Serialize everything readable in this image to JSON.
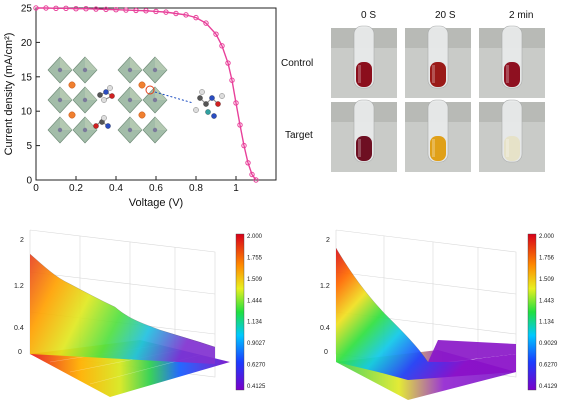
{
  "chart_data": {
    "type": "line",
    "xlabel": "Voltage (V)",
    "ylabel": "Current density (mA/cm²)",
    "xlim": [
      0,
      1.2
    ],
    "ylim": [
      0,
      25
    ],
    "xticks": [
      "0",
      "0.2",
      "0.4",
      "0.6",
      "0.8",
      "1"
    ],
    "yticks": [
      "0",
      "5",
      "10",
      "15",
      "20",
      "25"
    ],
    "series": [
      {
        "color": "#e8409a",
        "x": [
          0,
          0.05,
          0.1,
          0.15,
          0.2,
          0.25,
          0.3,
          0.35,
          0.4,
          0.45,
          0.5,
          0.55,
          0.6,
          0.65,
          0.7,
          0.75,
          0.8,
          0.85,
          0.9,
          0.93,
          0.96,
          0.98,
          1.0,
          1.02,
          1.04,
          1.06,
          1.08,
          1.1
        ],
        "y": [
          25.0,
          25.0,
          24.95,
          24.95,
          24.9,
          24.9,
          24.85,
          24.8,
          24.75,
          24.7,
          24.65,
          24.6,
          24.5,
          24.4,
          24.2,
          24.0,
          23.6,
          22.8,
          21.2,
          19.5,
          17.0,
          14.5,
          11.2,
          8.0,
          5.0,
          2.5,
          0.8,
          0
        ]
      }
    ]
  },
  "photos": {
    "columns": [
      "0 S",
      "20 S",
      "2 min"
    ],
    "rows": [
      "Control",
      "Target"
    ],
    "colors": {
      "Control": [
        "#8b0e1c",
        "#9a1a18",
        "#8e1020"
      ],
      "Target": [
        "#6e0f22",
        "#e0a018",
        "#e6e2c8"
      ]
    }
  },
  "surface_left": {
    "zticks": [
      "2",
      "1.2",
      "0.4",
      "0"
    ],
    "colorbar": [
      "2.000",
      "1.755",
      "1.509",
      "1.444",
      "1.134",
      "0.9027",
      "0.6270",
      "0.4125"
    ]
  },
  "surface_right": {
    "zticks": [
      "2",
      "1.2",
      "0.4",
      "0"
    ],
    "colorbar": [
      "2.000",
      "1.756",
      "1.509",
      "1.443",
      "1.134",
      "0.9029",
      "0.6270",
      "0.4129"
    ]
  }
}
